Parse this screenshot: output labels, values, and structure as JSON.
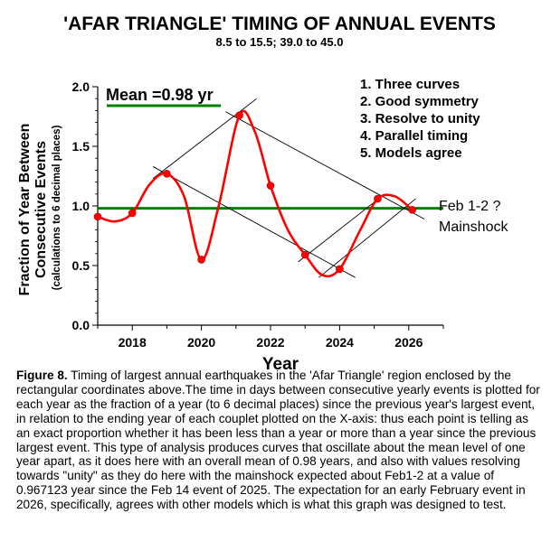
{
  "chart_data": {
    "type": "line",
    "title": "'AFAR TRIANGLE' TIMING OF ANNUAL EVENTS",
    "subtitle": "8.5 to 15.5; 39.0 to 45.0",
    "xlabel": "Year",
    "ylabel": "Fraction of Year Between Consecutive Events",
    "ylabel2": "(calculations to 6 decimal places)",
    "xlim": [
      2017,
      2027
    ],
    "ylim": [
      0,
      2
    ],
    "xticks": [
      2018,
      2020,
      2022,
      2024,
      2026
    ],
    "yticks": [
      "0.0",
      "0.5",
      "1.0",
      "1.5",
      "2.0"
    ],
    "series": [
      {
        "type": "points",
        "x": [
          2017.0,
          2018.0,
          2019.0,
          2020.0,
          2021.1,
          2022.0,
          2023.0,
          2024.0,
          2025.1,
          2026.1
        ],
        "y": [
          0.91,
          0.94,
          1.27,
          0.55,
          1.76,
          1.17,
          0.59,
          0.47,
          1.06,
          0.967
        ]
      }
    ],
    "curve": {
      "x": [
        2017.0,
        2017.5,
        2018.0,
        2018.5,
        2019.0,
        2019.5,
        2020.0,
        2020.5,
        2021.1,
        2021.55,
        2022.0,
        2022.5,
        2023.0,
        2023.5,
        2024.0,
        2024.6,
        2025.1,
        2025.6,
        2026.1
      ],
      "y": [
        0.91,
        0.87,
        0.94,
        1.18,
        1.27,
        1.08,
        0.55,
        1.0,
        1.76,
        1.62,
        1.17,
        0.8,
        0.59,
        0.42,
        0.47,
        0.8,
        1.06,
        1.08,
        0.967
      ]
    },
    "mean_line": {
      "value": 0.98,
      "label": "Mean =0.98 yr"
    },
    "guide_lines": [
      {
        "x": [
          2018.6,
          2024.45
        ],
        "y": [
          1.33,
          0.4
        ]
      },
      {
        "x": [
          2020.7,
          2026.45
        ],
        "y": [
          1.79,
          0.89
        ]
      },
      {
        "x": [
          2018.6,
          2021.6
        ],
        "y": [
          1.23,
          1.9
        ]
      },
      {
        "x": [
          2023.4,
          2026.2
        ],
        "y": [
          0.4,
          1.06
        ]
      },
      {
        "x": [
          2022.8,
          2025.3
        ],
        "y": [
          0.53,
          1.1
        ]
      }
    ],
    "notes": [
      "1. Three curves",
      "2. Good symmetry",
      "3. Resolve to unity",
      "4. Parallel timing",
      "5. Models agree"
    ],
    "annotation": {
      "line1": "Feb 1-2 ?",
      "line2": "Mainshock"
    },
    "colors": {
      "curve": "#ff0000",
      "points": "#ff0000",
      "mean": "#008000",
      "guides": "#000000"
    }
  },
  "caption": {
    "bold": "Figure 8.",
    "text": " Timing of largest annual earthquakes in the 'Afar Triangle' region enclosed by the rectangular coordinates above.The time in days between consecutive yearly events is plotted for each year as the fraction of a year (to 6 decimal places) since the previous year's largest event, in relation to the ending year of each couplet  plotted on the X-axis: thus each point is telling as an exact proportion whether it has been less than a year or more than a year since the previous largest event. This type of analysis produces curves that oscillate about the mean level of one year apart, as it does here with an overall mean of 0.98 years, and also with values resolving towards \"unity\" as they do here with the mainshock expected about Feb1-2 at a value of 0.967123 year since the Feb 14 event of 2025. The expectation for an early February event in 2026, specifically, agrees with other models which is what this graph was designed to test."
  }
}
